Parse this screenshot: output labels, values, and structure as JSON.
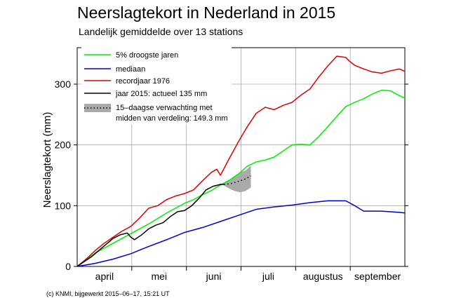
{
  "chart_data": {
    "type": "line",
    "title": "Neerslagtekort in Nederland in 2015",
    "subtitle": "Landelijk gemiddelde over 13 stations",
    "ylabel": "Neerslagtekort (mm)",
    "xlabel": "",
    "ylim": [
      0,
      360
    ],
    "yticks": [
      0,
      100,
      200,
      300
    ],
    "xlim_days": [
      0,
      183
    ],
    "months": [
      "april",
      "mei",
      "juni",
      "juli",
      "augustus",
      "september"
    ],
    "grid": true,
    "legend_position": "top-left",
    "series": [
      {
        "name": "5% droogste jaren",
        "color": "#00ee00",
        "x": [
          0,
          10,
          20,
          30,
          40,
          50,
          60,
          65,
          70,
          75,
          80,
          85,
          90,
          95,
          100,
          105,
          110,
          115,
          120,
          125,
          130,
          135,
          140,
          145,
          150,
          155,
          160,
          165,
          170,
          175,
          180,
          183
        ],
        "y": [
          0,
          22,
          38,
          54,
          70,
          88,
          104,
          110,
          118,
          125,
          134,
          142,
          152,
          165,
          172,
          175,
          180,
          190,
          200,
          201,
          200,
          214,
          230,
          247,
          263,
          270,
          276,
          284,
          290,
          289,
          281,
          277
        ]
      },
      {
        "name": "mediaan",
        "color": "#0000cc",
        "x": [
          0,
          10,
          20,
          30,
          40,
          50,
          60,
          70,
          80,
          90,
          100,
          110,
          120,
          130,
          140,
          150,
          155,
          160,
          165,
          170,
          175,
          180,
          183
        ],
        "y": [
          0,
          5,
          12,
          21,
          33,
          44,
          56,
          64,
          74,
          84,
          94,
          98,
          101,
          105,
          108,
          108,
          100,
          91,
          91,
          91,
          90,
          89,
          88
        ]
      },
      {
        "name": "recordjaar 1976",
        "color": "#dd0000",
        "x": [
          0,
          5,
          10,
          15,
          20,
          25,
          30,
          35,
          40,
          45,
          50,
          55,
          60,
          65,
          70,
          75,
          78,
          80,
          85,
          90,
          95,
          100,
          105,
          110,
          115,
          120,
          125,
          130,
          135,
          140,
          145,
          150,
          152,
          155,
          160,
          165,
          170,
          175,
          180,
          183
        ],
        "y": [
          0,
          12,
          26,
          38,
          48,
          58,
          66,
          80,
          96,
          100,
          110,
          116,
          120,
          126,
          141,
          155,
          160,
          150,
          178,
          205,
          230,
          252,
          262,
          258,
          265,
          270,
          282,
          292,
          312,
          330,
          346,
          344,
          338,
          331,
          325,
          320,
          318,
          322,
          325,
          321
        ]
      },
      {
        "name": "jaar 2015: actueel 135 mm",
        "color": "#000000",
        "x": [
          0,
          4,
          8,
          12,
          16,
          20,
          24,
          28,
          30,
          32,
          36,
          40,
          44,
          48,
          52,
          56,
          60,
          64,
          68,
          72,
          76,
          80,
          82
        ],
        "y": [
          0,
          8,
          16,
          26,
          36,
          46,
          52,
          55,
          48,
          44,
          52,
          62,
          68,
          72,
          82,
          90,
          92,
          100,
          112,
          126,
          132,
          135,
          135
        ]
      }
    ],
    "forecast": {
      "name": "15-daagse verwachting met midden van verdeling: 149.3 mm",
      "legend_line1": "15–daagse verwachting met",
      "legend_line2": "midden van verdeling: 149.3 mm",
      "color": "#000000",
      "band_color": "#aaaaaa",
      "x": [
        82,
        85,
        88,
        91,
        94,
        97
      ],
      "mid": [
        135,
        136,
        138,
        141,
        144,
        149.3
      ],
      "low": [
        133,
        128,
        124,
        122,
        124,
        130
      ],
      "high": [
        137,
        142,
        149,
        155,
        158,
        166
      ]
    },
    "footer": "(c) KNMI, bijgewerkt 2015–06–17, 15:21 UT"
  }
}
